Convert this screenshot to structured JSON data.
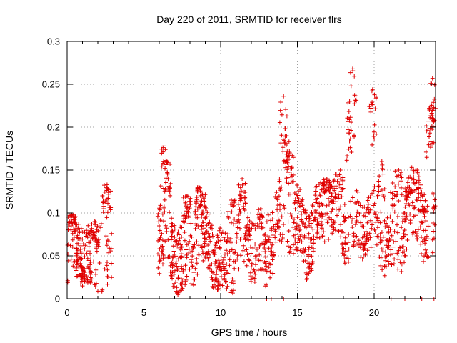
{
  "chart_data": {
    "type": "scatter",
    "title": "Day 220 of 2011, SRMTID for receiver flrs",
    "xlabel": "GPS time / hours",
    "ylabel": "SRMTID / TECUs",
    "xlim": [
      0,
      24
    ],
    "ylim": [
      0,
      0.3
    ],
    "xticks": [
      0,
      5,
      10,
      15,
      20
    ],
    "xtick_labels": [
      "0",
      "5",
      "10",
      "15",
      "20"
    ],
    "yticks": [
      0,
      0.05,
      0.1,
      0.15,
      0.2,
      0.25,
      0.3
    ],
    "ytick_labels": [
      "0",
      "0.05",
      "0.1",
      "0.15",
      "0.2",
      "0.25",
      "0.3"
    ],
    "grid": true,
    "marker": "+",
    "color": "#e00000",
    "series": [
      {
        "name": "SRMTID",
        "segments": [
          {
            "t0": 0.0,
            "t1": 2.9,
            "base": 0.045,
            "spread": 0.035,
            "peaks": [
              [
                0.3,
                0.098
              ],
              [
                2.3,
                0.12
              ],
              [
                2.6,
                0.133
              ],
              [
                1.8,
                0.09
              ]
            ],
            "n": 260
          },
          {
            "t0": 5.9,
            "t1": 9.0,
            "base": 0.06,
            "spread": 0.04,
            "peaks": [
              [
                6.3,
                0.178
              ],
              [
                6.5,
                0.16
              ],
              [
                8.5,
                0.13
              ],
              [
                7.8,
                0.12
              ]
            ],
            "n": 320
          },
          {
            "t0": 9.0,
            "t1": 13.0,
            "base": 0.055,
            "spread": 0.035,
            "peaks": [
              [
                10.7,
                0.115
              ],
              [
                11.4,
                0.14
              ],
              [
                12.6,
                0.105
              ]
            ],
            "n": 330
          },
          {
            "t0": 13.0,
            "t1": 16.0,
            "base": 0.085,
            "spread": 0.04,
            "peaks": [
              [
                14.1,
                0.236
              ],
              [
                14.3,
                0.19
              ],
              [
                14.5,
                0.17
              ]
            ],
            "n": 260
          },
          {
            "t0": 16.0,
            "t1": 19.0,
            "base": 0.095,
            "spread": 0.035,
            "peaks": [
              [
                18.6,
                0.268
              ],
              [
                18.4,
                0.23
              ],
              [
                17.8,
                0.15
              ],
              [
                16.9,
                0.14
              ]
            ],
            "n": 260
          },
          {
            "t0": 19.0,
            "t1": 22.0,
            "base": 0.075,
            "spread": 0.035,
            "peaks": [
              [
                19.9,
                0.244
              ],
              [
                20.5,
                0.16
              ],
              [
                21.2,
                0.135
              ],
              [
                21.6,
                0.15
              ]
            ],
            "n": 230
          },
          {
            "t0": 22.0,
            "t1": 24.0,
            "base": 0.09,
            "spread": 0.04,
            "peaks": [
              [
                23.8,
                0.257
              ],
              [
                23.6,
                0.22
              ],
              [
                22.8,
                0.15
              ],
              [
                22.3,
                0.13
              ]
            ],
            "n": 200
          }
        ],
        "zero_points_x": [
          13.0,
          13.3,
          14.1,
          21.1,
          22.0,
          23.1,
          23.9
        ]
      }
    ]
  }
}
